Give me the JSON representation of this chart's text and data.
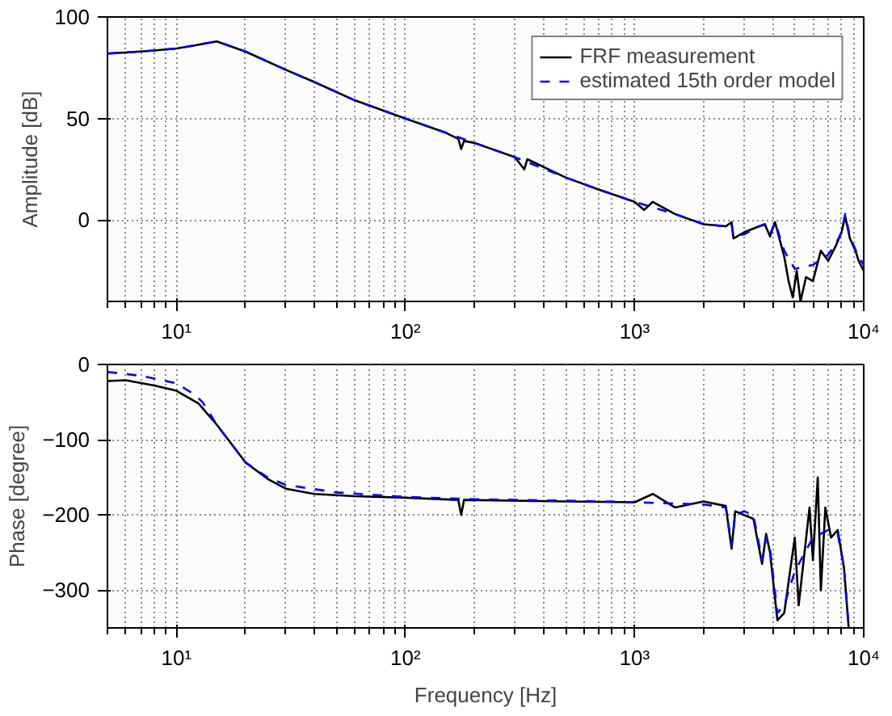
{
  "chart_data": [
    {
      "type": "line",
      "ylabel": "Amplitude [dB]",
      "log": "x",
      "grid": true,
      "legend": "top right",
      "xlim": [
        5,
        10000
      ],
      "xticks": [
        {
          "value": 10,
          "label": "10¹"
        },
        {
          "value": 100,
          "label": "10²"
        },
        {
          "value": 1000,
          "label": "10³"
        },
        {
          "value": 10000,
          "label": "10⁴"
        }
      ],
      "ylim": [
        -40,
        100
      ],
      "yticks": [
        0,
        50,
        100
      ],
      "series": [
        {
          "name": "FRF measurement",
          "color": "#000000",
          "line_style": "solid",
          "x": [
            5,
            6,
            8,
            10,
            12,
            15,
            20,
            30,
            40,
            60,
            100,
            150,
            170,
            175,
            180,
            200,
            300,
            330,
            340,
            500,
            700,
            1000,
            1100,
            1200,
            1500,
            2000,
            2500,
            2650,
            2700,
            3000,
            3500,
            3700,
            3900,
            4100,
            4500,
            4700,
            4900,
            5100,
            5300,
            5600,
            6000,
            6500,
            7000,
            7600,
            8000,
            8300,
            8700,
            9200,
            9500,
            10000
          ],
          "values": [
            82,
            82.5,
            83.5,
            84.5,
            86,
            88,
            83,
            74,
            68,
            59,
            50,
            43,
            40,
            35,
            39,
            38,
            31,
            25,
            30,
            21,
            15,
            9,
            5,
            9,
            3,
            -2,
            -3,
            -1,
            -9,
            -6,
            -3,
            -2,
            -8,
            -1,
            -18,
            -30,
            -38,
            -25,
            -40,
            -28,
            -30,
            -15,
            -20,
            -12,
            -6,
            2,
            -9,
            -15,
            -20,
            -25
          ]
        },
        {
          "name": "estimated 15th order model",
          "color": "#0000ff",
          "line_style": "dashed",
          "x": [
            5,
            6,
            8,
            10,
            12,
            15,
            20,
            30,
            40,
            60,
            100,
            150,
            200,
            300,
            500,
            700,
            1000,
            1500,
            2000,
            2500,
            2650,
            2700,
            3000,
            3500,
            3700,
            3900,
            4100,
            4500,
            5000,
            6000,
            7000,
            7600,
            8000,
            8300,
            8700,
            9500,
            10000
          ],
          "values": [
            82,
            82.5,
            83.5,
            84.5,
            86,
            88,
            83,
            74,
            68,
            59,
            50,
            43,
            38,
            31,
            21,
            15,
            9,
            3,
            -2,
            -3,
            -2,
            -8,
            -7,
            -3,
            -2,
            -7,
            -1,
            -15,
            -24,
            -22,
            -17,
            -11,
            -6,
            3,
            -8,
            -18,
            -22
          ]
        }
      ]
    },
    {
      "type": "line",
      "xlabel": "Frequency [Hz]",
      "ylabel": "Phase [degree]",
      "log": "x",
      "grid": true,
      "xlim": [
        5,
        10000
      ],
      "xticks": [
        {
          "value": 10,
          "label": "10¹"
        },
        {
          "value": 100,
          "label": "10²"
        },
        {
          "value": 1000,
          "label": "10³"
        },
        {
          "value": 10000,
          "label": "10⁴"
        }
      ],
      "ylim": [
        -350,
        0
      ],
      "yticks": [
        -300,
        -200,
        -100,
        0
      ],
      "series": [
        {
          "color": "#000000",
          "line_style": "solid",
          "x": [
            5,
            6,
            8,
            10,
            12.5,
            15,
            20,
            25,
            30,
            40,
            60,
            100,
            170,
            175,
            180,
            500,
            1000,
            1200,
            1500,
            2000,
            2500,
            2650,
            2750,
            3000,
            3300,
            3600,
            3750,
            3900,
            4200,
            4500,
            5000,
            5200,
            5800,
            6000,
            6300,
            6500,
            6800,
            7200,
            7700,
            8200,
            8600
          ],
          "values": [
            -22,
            -21,
            -28,
            -35,
            -52,
            -80,
            -130,
            -152,
            -165,
            -172,
            -175,
            -177,
            -180,
            -200,
            -180,
            -182,
            -183,
            -172,
            -190,
            -182,
            -188,
            -245,
            -195,
            -200,
            -205,
            -265,
            -225,
            -250,
            -340,
            -330,
            -230,
            -320,
            -190,
            -260,
            -150,
            -300,
            -190,
            -230,
            -220,
            -270,
            -350
          ]
        },
        {
          "color": "#0000ff",
          "line_style": "dashed",
          "x": [
            5,
            7,
            10,
            12,
            13,
            15,
            20,
            25,
            30,
            50,
            100,
            200,
            500,
            1000,
            2000,
            2500,
            2650,
            2750,
            3000,
            3300,
            3600,
            3750,
            3900,
            4200,
            4500,
            5000,
            6000,
            7000,
            7700,
            8200,
            8600
          ],
          "values": [
            -10,
            -15,
            -25,
            -40,
            -50,
            -80,
            -130,
            -150,
            -160,
            -170,
            -176,
            -179,
            -181,
            -183,
            -186,
            -190,
            -240,
            -200,
            -195,
            -200,
            -260,
            -230,
            -245,
            -330,
            -320,
            -275,
            -230,
            -220,
            -225,
            -270,
            -350
          ]
        }
      ]
    }
  ]
}
